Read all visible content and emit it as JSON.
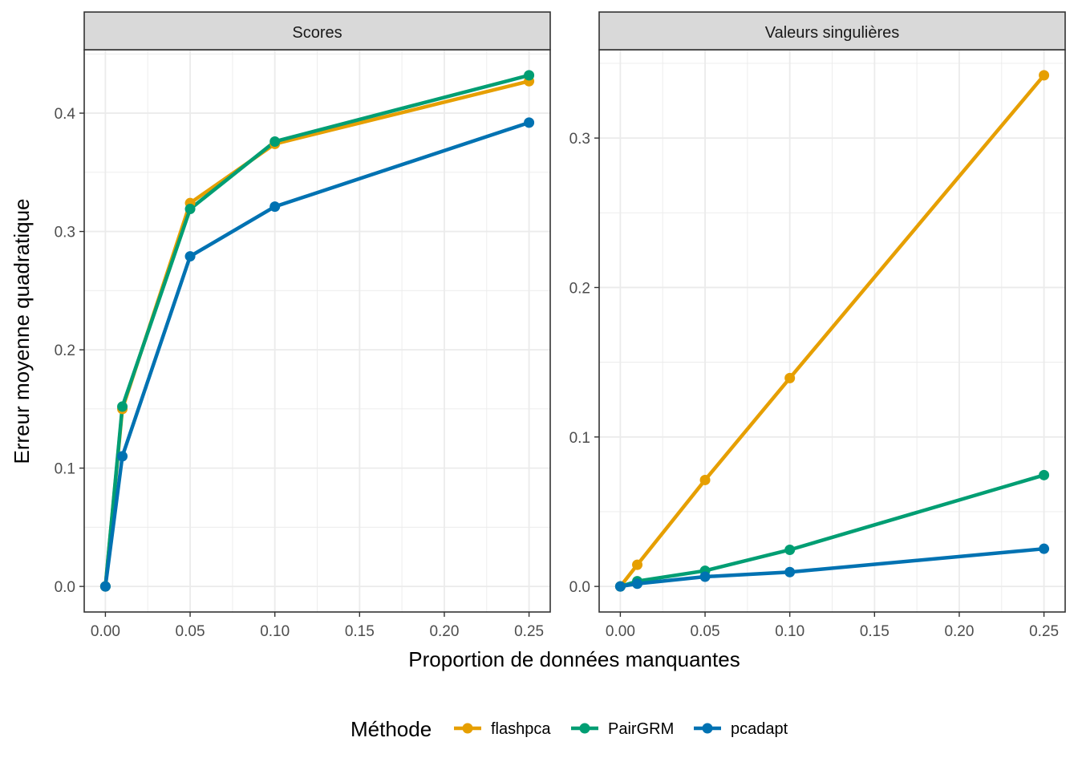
{
  "chart_data": {
    "type": "line",
    "x": [
      0.0,
      0.01,
      0.05,
      0.1,
      0.25
    ],
    "xlabel": "Proportion de données manquantes",
    "ylabel": "Erreur moyenne quadratique",
    "xlim": [
      -0.0125,
      0.2625
    ],
    "x_ticks": [
      "0.00",
      "0.05",
      "0.10",
      "0.15",
      "0.20",
      "0.25"
    ],
    "grid": true,
    "legend": {
      "title": "Méthode",
      "placement": "bottom",
      "entries": [
        "flashpca",
        "PairGRM",
        "pcadapt"
      ]
    },
    "colors": {
      "flashpca": "#E69F00",
      "PairGRM": "#009E73",
      "pcadapt": "#0072B2",
      "strip_bg": "#d9d9d9",
      "grid": "#ebebeb",
      "border": "#333333"
    },
    "facets": [
      {
        "title": "Scores",
        "ylim": [
          -0.0216,
          0.4536
        ],
        "y_ticks": [
          "0.0",
          "0.1",
          "0.2",
          "0.3",
          "0.4"
        ],
        "series": [
          {
            "name": "flashpca",
            "values": [
              0.0,
              0.15,
              0.324,
              0.374,
              0.427
            ]
          },
          {
            "name": "PairGRM",
            "values": [
              0.0,
              0.152,
              0.319,
              0.376,
              0.432
            ]
          },
          {
            "name": "pcadapt",
            "values": [
              0.0,
              0.11,
              0.279,
              0.321,
              0.392
            ]
          }
        ]
      },
      {
        "title": "Valeurs singulières",
        "ylim": [
          -0.0171,
          0.3591
        ],
        "y_ticks": [
          "0.0",
          "0.1",
          "0.2",
          "0.3"
        ],
        "series": [
          {
            "name": "flashpca",
            "values": [
              0.0,
              0.0145,
              0.0712,
              0.1394,
              0.342
            ]
          },
          {
            "name": "PairGRM",
            "values": [
              0.0,
              0.0035,
              0.0105,
              0.0245,
              0.0745
            ]
          },
          {
            "name": "pcadapt",
            "values": [
              0.0,
              0.0018,
              0.0065,
              0.0096,
              0.0252
            ]
          }
        ]
      }
    ]
  }
}
